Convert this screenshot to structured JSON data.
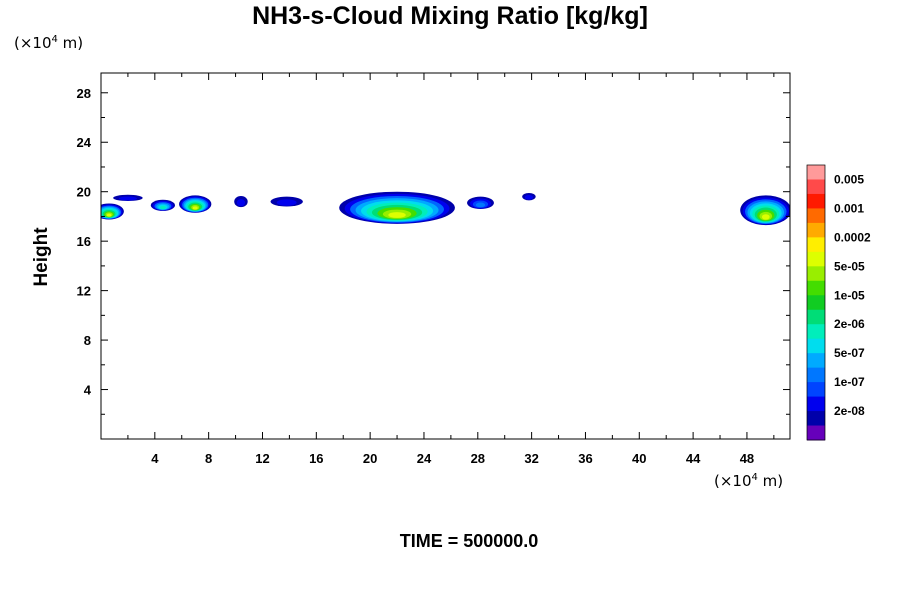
{
  "chart_data": {
    "type": "heatmap",
    "title": "NH3-s-Cloud Mixing Ratio [kg/kg]",
    "xunit_prefix": "(×10",
    "xunit_exp": "4",
    "xunit_suffix": " m)",
    "yunit_prefix": "(×10",
    "yunit_exp": "4",
    "yunit_suffix": " m)",
    "ylabel": "Height",
    "xlim": [
      0,
      51.2
    ],
    "ylim": [
      0,
      29.6
    ],
    "xticks": [
      4,
      8,
      12,
      16,
      20,
      24,
      28,
      32,
      36,
      40,
      44,
      48
    ],
    "xtick_labels": [
      "4",
      "8",
      "12",
      "16",
      "20",
      "24",
      "28",
      "32",
      "36",
      "40",
      "44",
      "48"
    ],
    "yticks": [
      4,
      8,
      12,
      16,
      20,
      24,
      28
    ],
    "ytick_labels": [
      "4",
      "8",
      "12",
      "16",
      "20",
      "24",
      "28"
    ],
    "colorbar": {
      "labels": [
        "0.005",
        "0.001",
        "0.0002",
        "5e-05",
        "1e-05",
        "2e-06",
        "5e-07",
        "1e-07",
        "2e-08"
      ],
      "colors_top_to_bottom": [
        "#ff9a9a",
        "#ff4a4a",
        "#ff1a00",
        "#ff6a00",
        "#ffaa00",
        "#ffee00",
        "#ddff00",
        "#99ee00",
        "#44dd00",
        "#11cc22",
        "#00dd77",
        "#00eebb",
        "#00ddee",
        "#00aaff",
        "#0077ff",
        "#0044ff",
        "#0000ee",
        "#0000aa",
        "#6600bb"
      ]
    },
    "clouds": [
      {
        "x": 0.6,
        "y": 18.4,
        "w": 2.2,
        "h": 1.3,
        "peak": "5e-05"
      },
      {
        "x": 2.0,
        "y": 19.5,
        "w": 2.2,
        "h": 0.5,
        "peak": "2e-08"
      },
      {
        "x": 4.6,
        "y": 18.9,
        "w": 1.8,
        "h": 0.9,
        "peak": "5e-07"
      },
      {
        "x": 7.0,
        "y": 19.0,
        "w": 2.4,
        "h": 1.4,
        "peak": "5e-05"
      },
      {
        "x": 10.4,
        "y": 19.2,
        "w": 1.0,
        "h": 0.9,
        "peak": "2e-08"
      },
      {
        "x": 13.8,
        "y": 19.2,
        "w": 2.4,
        "h": 0.8,
        "peak": "2e-08"
      },
      {
        "x": 22.0,
        "y": 18.7,
        "w": 8.6,
        "h": 2.6,
        "peak": "5e-05"
      },
      {
        "x": 28.2,
        "y": 19.1,
        "w": 2.0,
        "h": 1.0,
        "peak": "1e-07"
      },
      {
        "x": 31.8,
        "y": 19.6,
        "w": 1.0,
        "h": 0.6,
        "peak": "2e-08"
      },
      {
        "x": 49.4,
        "y": 18.5,
        "w": 3.8,
        "h": 2.4,
        "peak": "5e-05"
      }
    ]
  },
  "time_label": "TIME = 500000.0"
}
